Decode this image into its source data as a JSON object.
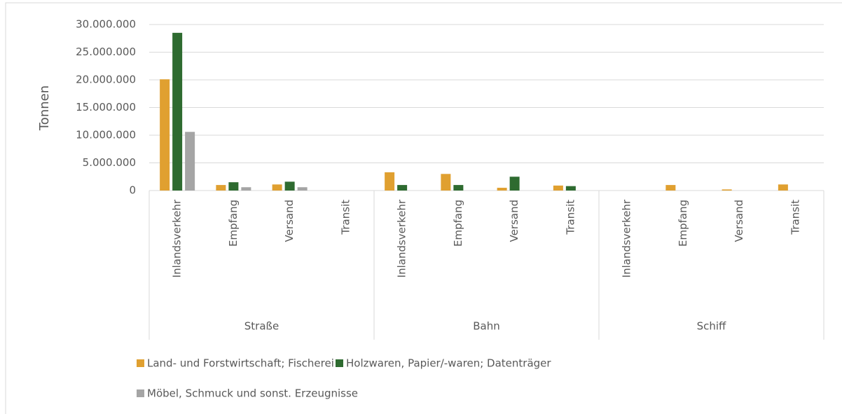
{
  "chart_data": {
    "type": "bar",
    "y_axis_label": "Tonnen",
    "category_groups": [
      {
        "name": "Straße",
        "categories": [
          "Inlandsverkehr",
          "Empfang",
          "Versand",
          "Transit"
        ]
      },
      {
        "name": "Bahn",
        "categories": [
          "Inlandsverkehr",
          "Empfang",
          "Versand",
          "Transit"
        ]
      },
      {
        "name": "Schiff",
        "categories": [
          "Inlandsverkehr",
          "Empfang",
          "Versand",
          "Transit"
        ]
      }
    ],
    "series": [
      {
        "name": "Land- und Forstwirtschaft; Fischerei",
        "color": "#e0a030",
        "values": [
          20100000,
          1000000,
          1100000,
          0,
          3300000,
          3000000,
          500000,
          900000,
          0,
          1000000,
          200000,
          1100000
        ]
      },
      {
        "name": "Holzwaren, Papier/-waren; Datenträger",
        "color": "#2e6b30",
        "values": [
          28500000,
          1500000,
          1600000,
          0,
          1000000,
          1000000,
          2500000,
          800000,
          0,
          0,
          0,
          0
        ]
      },
      {
        "name": "Möbel, Schmuck und sonst. Erzeugnisse",
        "color": "#a5a5a5",
        "values": [
          10600000,
          600000,
          600000,
          0,
          0,
          0,
          0,
          0,
          0,
          0,
          0,
          0
        ]
      }
    ],
    "ylim": [
      0,
      30000000
    ],
    "yticks": [
      0,
      {
        "value": 5000000,
        "label": "5.000.000"
      },
      {
        "value": 10000000,
        "label": "10.000.000"
      },
      {
        "value": 15000000,
        "label": "15.000.000"
      },
      {
        "value": 20000000,
        "label": "20.000.000"
      },
      {
        "value": 25000000,
        "label": "25.000.000"
      },
      {
        "value": 30000000,
        "label": "30.000.000"
      }
    ],
    "grid": true,
    "legend": "bottom"
  }
}
